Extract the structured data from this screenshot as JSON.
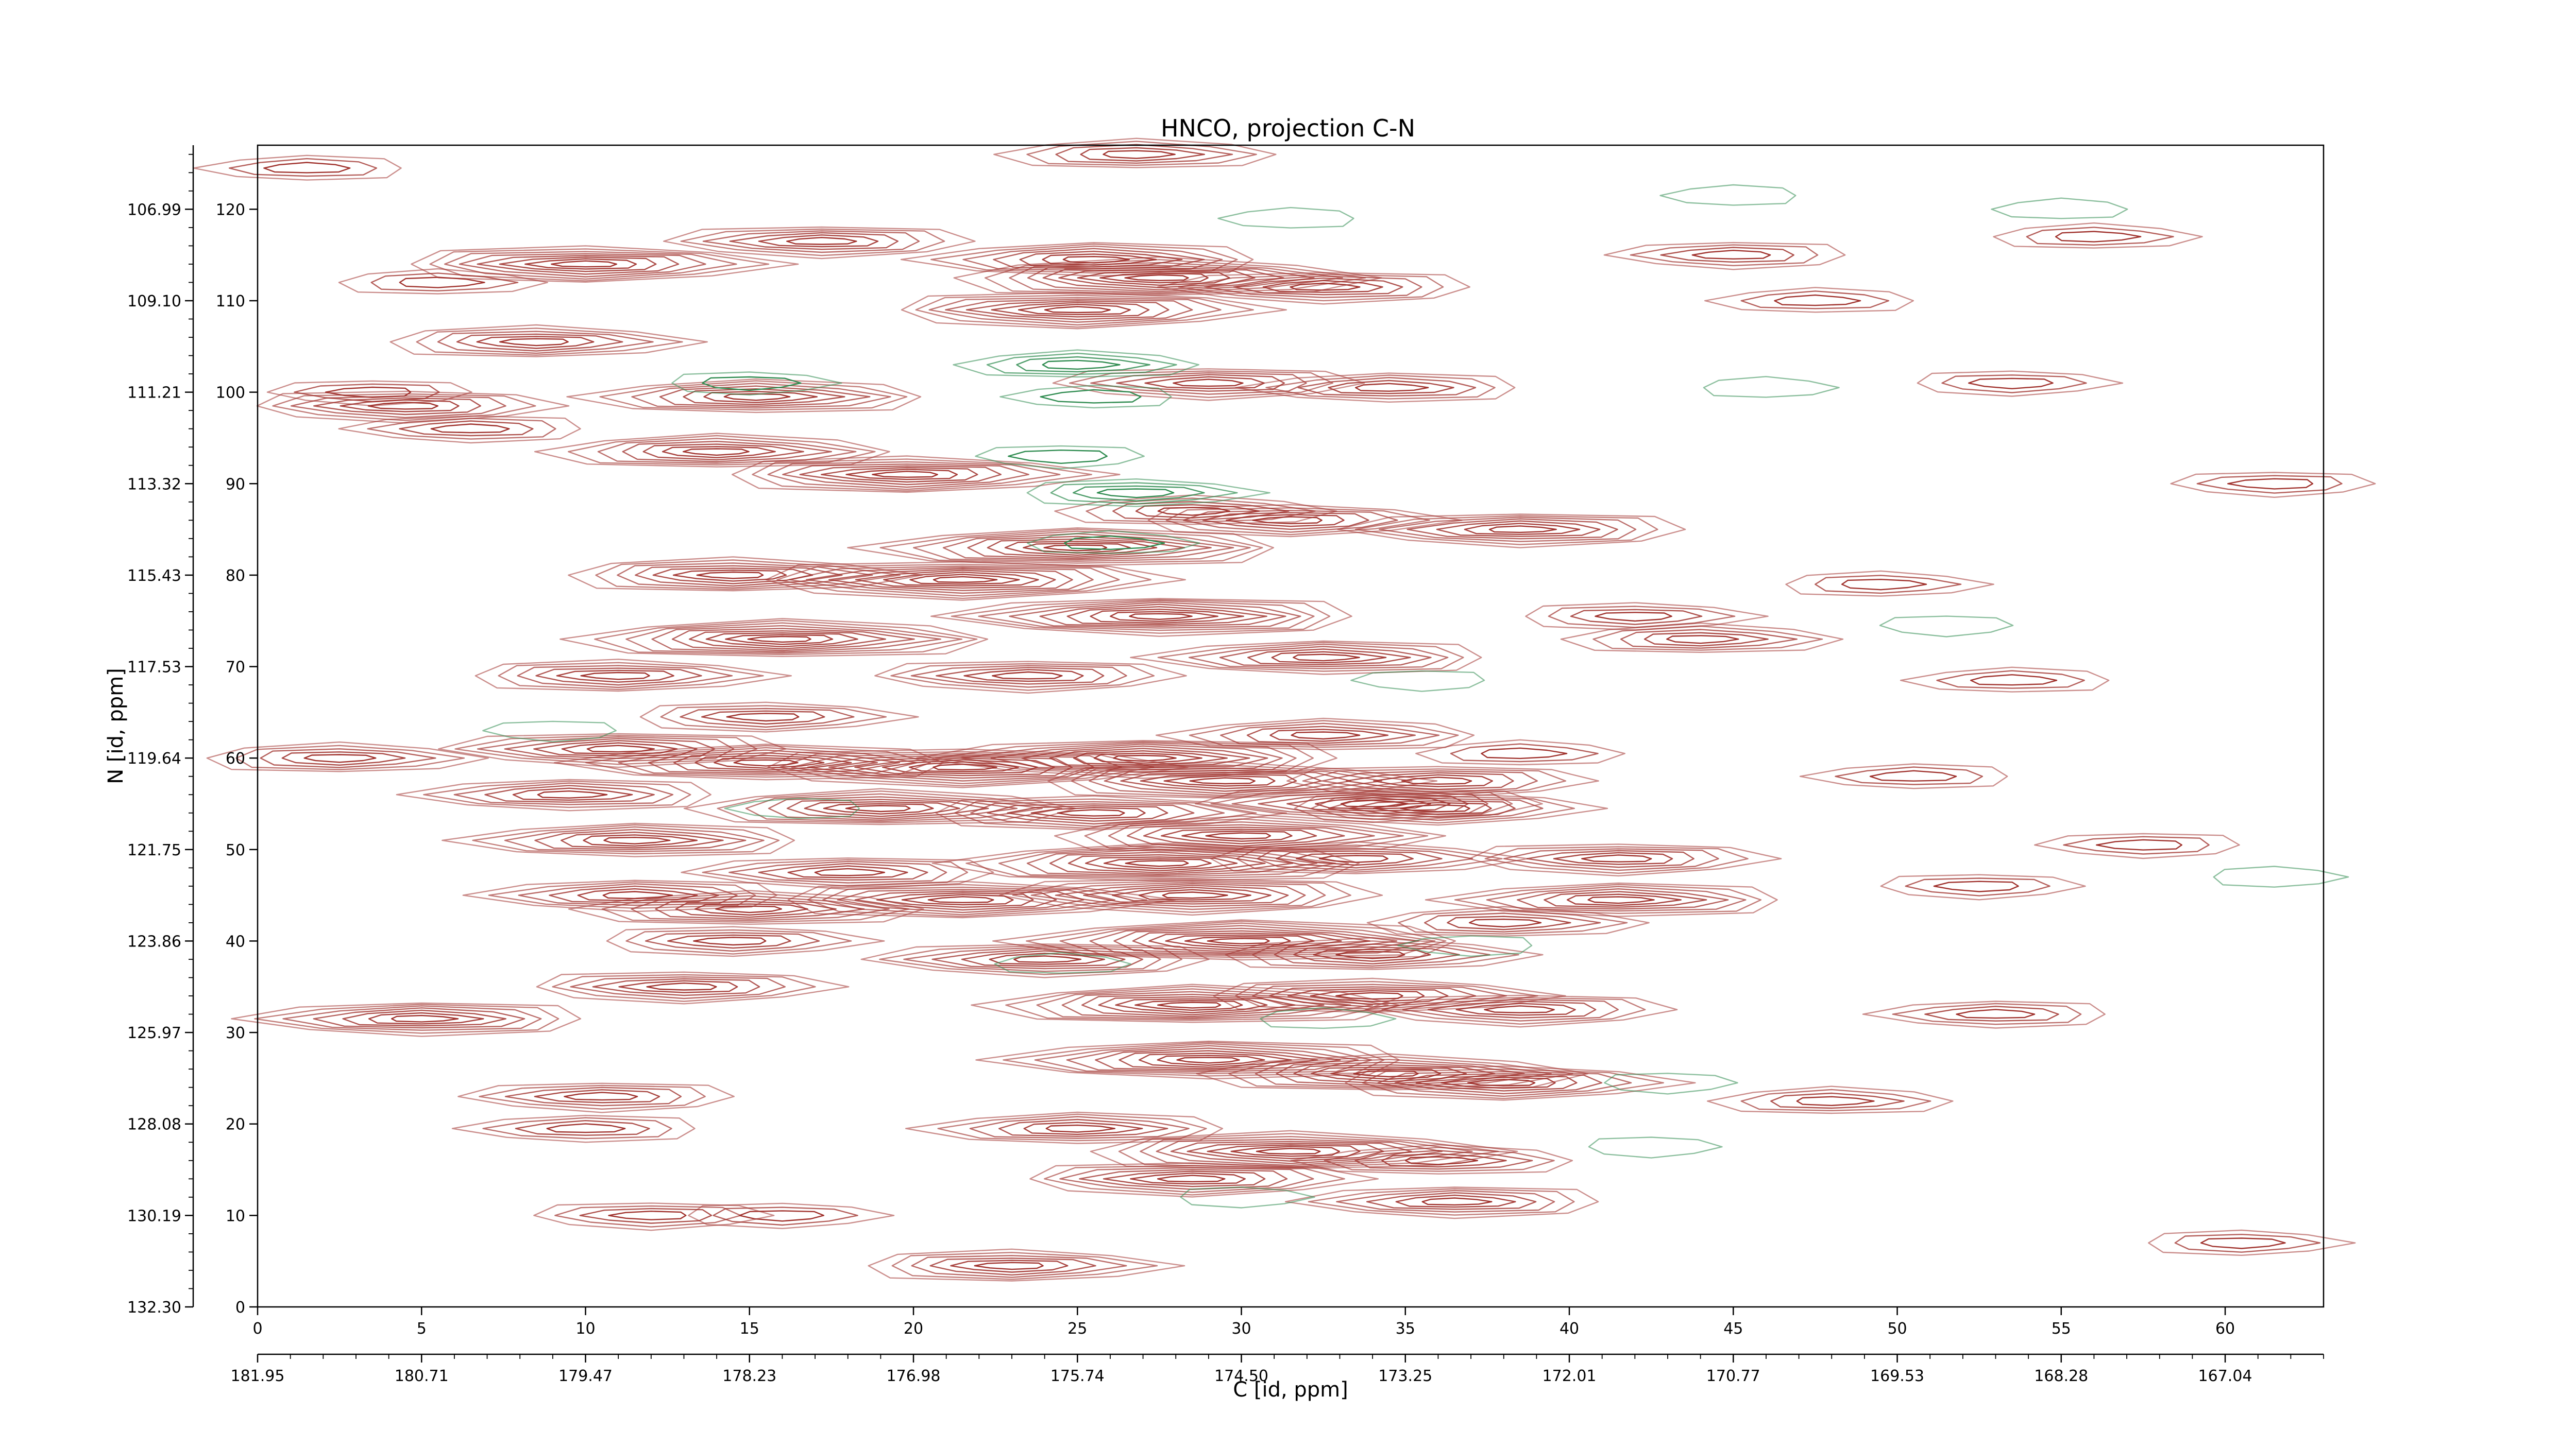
{
  "chart_data": {
    "type": "contour",
    "title": "HNCO, projection C-N",
    "xlabel": "C [id, ppm]",
    "ylabel": "N [id, ppm]",
    "x_index_range": [
      0,
      63
    ],
    "y_index_range": [
      0,
      127
    ],
    "x_index_ticks": [
      "0",
      "5",
      "10",
      "15",
      "20",
      "25",
      "30",
      "35",
      "40",
      "45",
      "50",
      "55",
      "60"
    ],
    "x_ppm_ticks": [
      "181.95",
      "180.71",
      "179.47",
      "178.23",
      "176.98",
      "175.74",
      "174.50",
      "173.25",
      "172.01",
      "170.77",
      "169.53",
      "168.28",
      "167.04"
    ],
    "y_index_ticks": [
      "0",
      "10",
      "20",
      "30",
      "40",
      "50",
      "60",
      "70",
      "80",
      "90",
      "100",
      "110",
      "120"
    ],
    "y_ppm_ticks": [
      "132.30",
      "130.19",
      "128.08",
      "125.97",
      "123.86",
      "121.75",
      "119.64",
      "117.53",
      "115.43",
      "113.32",
      "111.21",
      "109.10",
      "106.99"
    ],
    "colors": {
      "positive": "#a0322d",
      "negative": "#2e8b4f"
    },
    "peaks_positive": [
      {
        "x": 26.8,
        "y": 126.0,
        "levels": 5
      },
      {
        "x": 10.0,
        "y": 114.0,
        "levels": 8
      },
      {
        "x": 17.2,
        "y": 116.5,
        "levels": 6
      },
      {
        "x": 25.5,
        "y": 114.5,
        "levels": 7
      },
      {
        "x": 27.5,
        "y": 112.5,
        "levels": 9
      },
      {
        "x": 25.0,
        "y": 109.0,
        "levels": 8
      },
      {
        "x": 32.5,
        "y": 111.5,
        "levels": 6
      },
      {
        "x": 15.2,
        "y": 99.5,
        "levels": 7
      },
      {
        "x": 8.5,
        "y": 105.5,
        "levels": 6
      },
      {
        "x": 4.5,
        "y": 98.5,
        "levels": 6
      },
      {
        "x": 6.5,
        "y": 96.0,
        "levels": 4
      },
      {
        "x": 14.0,
        "y": 93.5,
        "levels": 7
      },
      {
        "x": 19.8,
        "y": 91.0,
        "levels": 8
      },
      {
        "x": 29.0,
        "y": 101.0,
        "levels": 6
      },
      {
        "x": 34.5,
        "y": 100.5,
        "levels": 5
      },
      {
        "x": 28.5,
        "y": 87.0,
        "levels": 5
      },
      {
        "x": 31.5,
        "y": 86.0,
        "levels": 6
      },
      {
        "x": 38.5,
        "y": 85.0,
        "levels": 7
      },
      {
        "x": 25.0,
        "y": 83.0,
        "levels": 9
      },
      {
        "x": 14.5,
        "y": 80.0,
        "levels": 7
      },
      {
        "x": 21.5,
        "y": 79.5,
        "levels": 9
      },
      {
        "x": 27.5,
        "y": 75.5,
        "levels": 9
      },
      {
        "x": 16.0,
        "y": 73.0,
        "levels": 9
      },
      {
        "x": 11.0,
        "y": 69.0,
        "levels": 6
      },
      {
        "x": 23.5,
        "y": 69.0,
        "levels": 6
      },
      {
        "x": 32.5,
        "y": 71.0,
        "levels": 7
      },
      {
        "x": 44.0,
        "y": 73.0,
        "levels": 5
      },
      {
        "x": 15.5,
        "y": 64.5,
        "levels": 5
      },
      {
        "x": 11.0,
        "y": 61.0,
        "levels": 7
      },
      {
        "x": 15.5,
        "y": 59.5,
        "levels": 8
      },
      {
        "x": 2.5,
        "y": 60.0,
        "levels": 5
      },
      {
        "x": 21.5,
        "y": 59.0,
        "levels": 9
      },
      {
        "x": 27.0,
        "y": 60.0,
        "levels": 9
      },
      {
        "x": 32.5,
        "y": 62.5,
        "levels": 6
      },
      {
        "x": 29.5,
        "y": 57.5,
        "levels": 8
      },
      {
        "x": 36.0,
        "y": 57.5,
        "levels": 6
      },
      {
        "x": 9.5,
        "y": 56.0,
        "levels": 6
      },
      {
        "x": 19.0,
        "y": 54.5,
        "levels": 8
      },
      {
        "x": 25.5,
        "y": 54.0,
        "levels": 7
      },
      {
        "x": 34.0,
        "y": 55.0,
        "levels": 7
      },
      {
        "x": 11.5,
        "y": 51.0,
        "levels": 7
      },
      {
        "x": 30.0,
        "y": 51.5,
        "levels": 8
      },
      {
        "x": 36.0,
        "y": 54.5,
        "levels": 6
      },
      {
        "x": 18.0,
        "y": 47.5,
        "levels": 6
      },
      {
        "x": 27.5,
        "y": 48.5,
        "levels": 9
      },
      {
        "x": 33.5,
        "y": 49.0,
        "levels": 6
      },
      {
        "x": 41.5,
        "y": 49.0,
        "levels": 6
      },
      {
        "x": 11.5,
        "y": 45.0,
        "levels": 6
      },
      {
        "x": 15.0,
        "y": 43.5,
        "levels": 7
      },
      {
        "x": 21.5,
        "y": 44.5,
        "levels": 8
      },
      {
        "x": 28.5,
        "y": 45.0,
        "levels": 8
      },
      {
        "x": 41.5,
        "y": 44.5,
        "levels": 7
      },
      {
        "x": 38.0,
        "y": 42.0,
        "levels": 5
      },
      {
        "x": 14.5,
        "y": 40.0,
        "levels": 5
      },
      {
        "x": 24.0,
        "y": 38.0,
        "levels": 7
      },
      {
        "x": 30.0,
        "y": 40.0,
        "levels": 10
      },
      {
        "x": 34.0,
        "y": 38.5,
        "levels": 6
      },
      {
        "x": 13.0,
        "y": 35.0,
        "levels": 6
      },
      {
        "x": 5.0,
        "y": 31.5,
        "levels": 7
      },
      {
        "x": 28.5,
        "y": 33.0,
        "levels": 9
      },
      {
        "x": 34.0,
        "y": 34.0,
        "levels": 7
      },
      {
        "x": 38.5,
        "y": 32.5,
        "levels": 6
      },
      {
        "x": 29.0,
        "y": 27.0,
        "levels": 9
      },
      {
        "x": 34.5,
        "y": 25.5,
        "levels": 8
      },
      {
        "x": 38.0,
        "y": 24.5,
        "levels": 7
      },
      {
        "x": 10.5,
        "y": 23.0,
        "levels": 5
      },
      {
        "x": 25.0,
        "y": 19.5,
        "levels": 6
      },
      {
        "x": 31.5,
        "y": 17.0,
        "levels": 9
      },
      {
        "x": 28.5,
        "y": 14.0,
        "levels": 7
      },
      {
        "x": 36.5,
        "y": 11.5,
        "levels": 6
      },
      {
        "x": 36.0,
        "y": 16.0,
        "levels": 5
      },
      {
        "x": 23.0,
        "y": 4.5,
        "levels": 6
      },
      {
        "x": 12.0,
        "y": 10.0,
        "levels": 4
      },
      {
        "x": 10.0,
        "y": 19.5,
        "levels": 4
      },
      {
        "x": 38.5,
        "y": 60.5,
        "levels": 3
      },
      {
        "x": 42.0,
        "y": 75.5,
        "levels": 4
      },
      {
        "x": 3.5,
        "y": 100.0,
        "levels": 3
      },
      {
        "x": 1.5,
        "y": 124.5,
        "levels": 3
      },
      {
        "x": 5.5,
        "y": 112.0,
        "levels": 3
      },
      {
        "x": 53.5,
        "y": 101.0,
        "levels": 3
      },
      {
        "x": 45.0,
        "y": 115.0,
        "levels": 4
      },
      {
        "x": 47.5,
        "y": 110.0,
        "levels": 3
      },
      {
        "x": 49.5,
        "y": 79.0,
        "levels": 3
      },
      {
        "x": 52.5,
        "y": 46.0,
        "levels": 3
      },
      {
        "x": 53.0,
        "y": 32.0,
        "levels": 4
      },
      {
        "x": 48.0,
        "y": 22.5,
        "levels": 4
      },
      {
        "x": 60.5,
        "y": 7.0,
        "levels": 3
      },
      {
        "x": 61.5,
        "y": 90.0,
        "levels": 3
      },
      {
        "x": 50.5,
        "y": 58.0,
        "levels": 3
      },
      {
        "x": 56.0,
        "y": 117.0,
        "levels": 3
      },
      {
        "x": 16.0,
        "y": 10.0,
        "levels": 3
      },
      {
        "x": 57.5,
        "y": 50.5,
        "levels": 3
      },
      {
        "x": 53.5,
        "y": 68.5,
        "levels": 3
      }
    ],
    "peaks_negative": [
      {
        "x": 25.0,
        "y": 103.0,
        "levels": 4
      },
      {
        "x": 26.8,
        "y": 89.0,
        "levels": 4
      },
      {
        "x": 24.5,
        "y": 93.0,
        "levels": 2
      },
      {
        "x": 25.5,
        "y": 99.5,
        "levels": 2
      },
      {
        "x": 26.0,
        "y": 83.5,
        "levels": 2
      },
      {
        "x": 15.0,
        "y": 101.0,
        "levels": 2
      },
      {
        "x": 35.5,
        "y": 68.5,
        "levels": 1
      },
      {
        "x": 31.5,
        "y": 119.0,
        "levels": 1
      },
      {
        "x": 46.0,
        "y": 100.5,
        "levels": 1
      },
      {
        "x": 43.0,
        "y": 24.5,
        "levels": 1
      },
      {
        "x": 37.0,
        "y": 39.5,
        "levels": 1
      },
      {
        "x": 55.0,
        "y": 120.0,
        "levels": 1
      },
      {
        "x": 61.5,
        "y": 47.0,
        "levels": 1
      },
      {
        "x": 51.5,
        "y": 74.5,
        "levels": 1
      },
      {
        "x": 16.5,
        "y": 54.5,
        "levels": 1
      },
      {
        "x": 24.5,
        "y": 37.5,
        "levels": 1
      },
      {
        "x": 30.0,
        "y": 12.0,
        "levels": 1
      },
      {
        "x": 9.0,
        "y": 63.0,
        "levels": 1
      },
      {
        "x": 45.0,
        "y": 121.5,
        "levels": 1
      },
      {
        "x": 32.5,
        "y": 31.5,
        "levels": 1
      },
      {
        "x": 42.5,
        "y": 17.5,
        "levels": 1
      }
    ]
  }
}
